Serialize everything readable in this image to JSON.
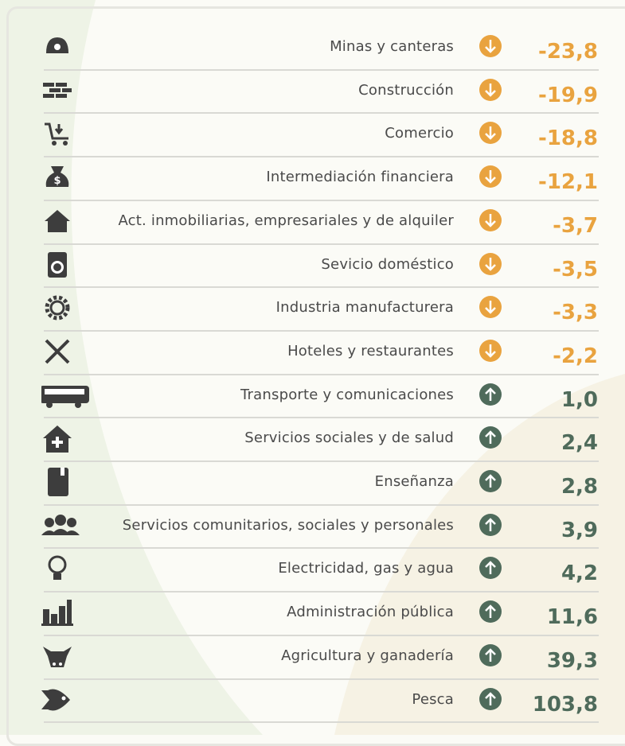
{
  "rows": [
    {
      "label": "Minas y canteras",
      "value": "-23,8"
    },
    {
      "label": "Construcción",
      "value": "-19,9"
    },
    {
      "label": "Comercio",
      "value": "-18,8"
    },
    {
      "label": "Intermediación financiera",
      "value": "-12,1"
    },
    {
      "label": "Act. inmobiliarias, empresariales y de alquiler",
      "value": "-3,7"
    },
    {
      "label": "Sevicio doméstico",
      "value": "-3,5"
    },
    {
      "label": "Industria manufacturera",
      "value": "-3,3"
    },
    {
      "label": "Hoteles y restaurantes",
      "value": "-2,2"
    },
    {
      "label": "Transporte y comunicaciones",
      "value": "1,0"
    },
    {
      "label": "Servicios sociales y de salud",
      "value": "2,4"
    },
    {
      "label": "Enseñanza",
      "value": "2,8"
    },
    {
      "label": "Servicios comunitarios, sociales y personales",
      "value": "3,9"
    },
    {
      "label": "Electricidad, gas y agua",
      "value": "4,2"
    },
    {
      "label": "Administración pública",
      "value": "11,6"
    },
    {
      "label": "Agricultura y ganadería",
      "value": "39,3"
    },
    {
      "label": "Pesca",
      "value": "103,8"
    }
  ]
}
